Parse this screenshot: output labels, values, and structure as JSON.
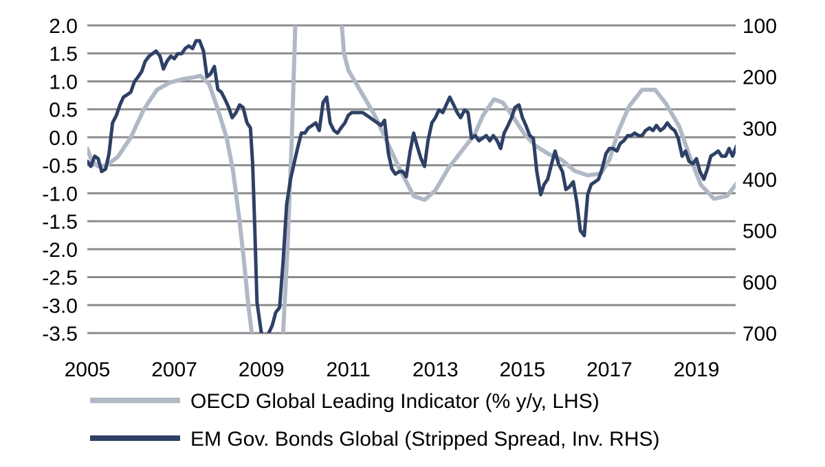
{
  "chart_data": {
    "type": "line",
    "title": "",
    "grid": true,
    "legend_position": "bottom",
    "x_axis": {
      "range": [
        2005.0,
        2019.9
      ],
      "ticks": [
        2005,
        2007,
        2009,
        2011,
        2013,
        2015,
        2017,
        2019
      ],
      "tick_labels": [
        "2005",
        "2007",
        "2009",
        "2011",
        "2013",
        "2015",
        "2017",
        "2019"
      ]
    },
    "y_left": {
      "range": [
        -3.5,
        2.0
      ],
      "ticks": [
        2.0,
        1.5,
        1.0,
        0.5,
        0.0,
        -0.5,
        -1.0,
        -1.5,
        -2.0,
        -2.5,
        -3.0,
        -3.5
      ],
      "tick_labels": [
        "2.0",
        "1.5",
        "1.0",
        "0.5",
        "0.0",
        "-0.5",
        "-1.0",
        "-1.5",
        "-2.0",
        "-2.5",
        "-3.0",
        "-3.5"
      ]
    },
    "y_right": {
      "range": [
        100,
        700
      ],
      "inverted": true,
      "ticks": [
        100,
        200,
        300,
        400,
        500,
        600,
        700
      ],
      "tick_labels": [
        "100",
        "200",
        "300",
        "400",
        "500",
        "600",
        "700"
      ]
    },
    "series": [
      {
        "name": "OECD Global Leading Indicator (% y/y, LHS)",
        "axis": "left",
        "color": "#b1b8c6",
        "points": [
          [
            2005.0,
            -0.2
          ],
          [
            2005.1,
            -0.42
          ],
          [
            2005.25,
            -0.52
          ],
          [
            2005.45,
            -0.5
          ],
          [
            2005.7,
            -0.35
          ],
          [
            2006.0,
            0.0
          ],
          [
            2006.3,
            0.5
          ],
          [
            2006.6,
            0.85
          ],
          [
            2006.9,
            0.98
          ],
          [
            2007.2,
            1.04
          ],
          [
            2007.5,
            1.08
          ],
          [
            2007.6,
            1.1
          ],
          [
            2007.8,
            0.95
          ],
          [
            2008.0,
            0.5
          ],
          [
            2008.2,
            0.0
          ],
          [
            2008.35,
            -0.6
          ],
          [
            2008.5,
            -1.5
          ],
          [
            2008.6,
            -2.2
          ],
          [
            2008.7,
            -3.0
          ],
          [
            2008.78,
            -3.5
          ]
        ]
      },
      {
        "name": "OECD Global Leading Indicator (% y/y, LHS)",
        "axis": "left",
        "color": "#b1b8c6",
        "points": [
          [
            2009.5,
            -3.5
          ],
          [
            2009.6,
            -2.0
          ],
          [
            2009.7,
            0.0
          ],
          [
            2009.78,
            2.0
          ]
        ]
      },
      {
        "name": "OECD Global Leading Indicator (% y/y, LHS)",
        "axis": "left",
        "color": "#b1b8c6",
        "points": [
          [
            2010.85,
            2.0
          ],
          [
            2010.9,
            1.5
          ],
          [
            2011.0,
            1.2
          ],
          [
            2011.3,
            0.8
          ],
          [
            2011.6,
            0.4
          ],
          [
            2011.9,
            -0.1
          ],
          [
            2012.2,
            -0.6
          ],
          [
            2012.5,
            -1.05
          ],
          [
            2012.75,
            -1.12
          ],
          [
            2013.0,
            -0.95
          ],
          [
            2013.3,
            -0.55
          ],
          [
            2013.6,
            -0.25
          ],
          [
            2013.9,
            0.05
          ],
          [
            2014.1,
            0.4
          ],
          [
            2014.35,
            0.68
          ],
          [
            2014.55,
            0.62
          ],
          [
            2014.8,
            0.35
          ],
          [
            2015.05,
            0.05
          ],
          [
            2015.3,
            -0.15
          ],
          [
            2015.6,
            -0.3
          ],
          [
            2015.9,
            -0.4
          ],
          [
            2016.2,
            -0.6
          ],
          [
            2016.5,
            -0.68
          ],
          [
            2016.8,
            -0.65
          ],
          [
            2017.0,
            -0.4
          ],
          [
            2017.2,
            0.1
          ],
          [
            2017.45,
            0.55
          ],
          [
            2017.75,
            0.85
          ],
          [
            2018.05,
            0.85
          ],
          [
            2018.3,
            0.6
          ],
          [
            2018.6,
            0.2
          ],
          [
            2018.85,
            -0.35
          ],
          [
            2019.1,
            -0.85
          ],
          [
            2019.4,
            -1.1
          ],
          [
            2019.7,
            -1.05
          ],
          [
            2020.0,
            -0.75
          ]
        ]
      },
      {
        "name": "EM Gov. Bonds Global (Stripped Spread, Inv. RHS)",
        "axis": "right",
        "color": "#2e4066",
        "points": [
          [
            2005.0,
            365
          ],
          [
            2005.08,
            375
          ],
          [
            2005.17,
            355
          ],
          [
            2005.25,
            360
          ],
          [
            2005.33,
            385
          ],
          [
            2005.42,
            380
          ],
          [
            2005.5,
            350
          ],
          [
            2005.58,
            290
          ],
          [
            2005.67,
            275
          ],
          [
            2005.75,
            255
          ],
          [
            2005.83,
            240
          ],
          [
            2005.92,
            235
          ],
          [
            2006.0,
            230
          ],
          [
            2006.08,
            210
          ],
          [
            2006.17,
            200
          ],
          [
            2006.25,
            190
          ],
          [
            2006.33,
            170
          ],
          [
            2006.42,
            160
          ],
          [
            2006.5,
            155
          ],
          [
            2006.58,
            150
          ],
          [
            2006.67,
            160
          ],
          [
            2006.75,
            185
          ],
          [
            2006.83,
            170
          ],
          [
            2006.92,
            160
          ],
          [
            2007.0,
            165
          ],
          [
            2007.08,
            155
          ],
          [
            2007.17,
            155
          ],
          [
            2007.25,
            145
          ],
          [
            2007.33,
            140
          ],
          [
            2007.42,
            145
          ],
          [
            2007.5,
            130
          ],
          [
            2007.58,
            130
          ],
          [
            2007.67,
            150
          ],
          [
            2007.75,
            200
          ],
          [
            2007.83,
            195
          ],
          [
            2007.92,
            180
          ],
          [
            2008.0,
            225
          ],
          [
            2008.08,
            230
          ],
          [
            2008.17,
            245
          ],
          [
            2008.25,
            260
          ],
          [
            2008.33,
            280
          ],
          [
            2008.42,
            270
          ],
          [
            2008.5,
            255
          ],
          [
            2008.58,
            260
          ],
          [
            2008.67,
            290
          ],
          [
            2008.75,
            300
          ],
          [
            2008.8,
            370
          ],
          [
            2008.85,
            500
          ],
          [
            2008.9,
            640
          ],
          [
            2009.0,
            700
          ],
          [
            2009.08,
            710
          ],
          [
            2009.17,
            700
          ],
          [
            2009.25,
            685
          ],
          [
            2009.33,
            660
          ],
          [
            2009.42,
            650
          ],
          [
            2009.5,
            560
          ],
          [
            2009.58,
            450
          ],
          [
            2009.67,
            400
          ],
          [
            2009.75,
            370
          ],
          [
            2009.83,
            340
          ],
          [
            2009.92,
            310
          ],
          [
            2010.0,
            310
          ],
          [
            2010.08,
            300
          ],
          [
            2010.17,
            295
          ],
          [
            2010.25,
            290
          ],
          [
            2010.33,
            305
          ],
          [
            2010.42,
            250
          ],
          [
            2010.5,
            240
          ],
          [
            2010.58,
            290
          ],
          [
            2010.67,
            305
          ],
          [
            2010.75,
            310
          ],
          [
            2010.83,
            300
          ],
          [
            2010.92,
            290
          ],
          [
            2011.0,
            275
          ],
          [
            2011.08,
            270
          ],
          [
            2011.17,
            270
          ],
          [
            2011.33,
            270
          ],
          [
            2011.5,
            280
          ],
          [
            2011.58,
            285
          ],
          [
            2011.67,
            290
          ],
          [
            2011.75,
            295
          ],
          [
            2011.83,
            285
          ],
          [
            2011.92,
            350
          ],
          [
            2012.0,
            380
          ],
          [
            2012.08,
            390
          ],
          [
            2012.17,
            385
          ],
          [
            2012.25,
            385
          ],
          [
            2012.33,
            395
          ],
          [
            2012.42,
            345
          ],
          [
            2012.5,
            310
          ],
          [
            2012.58,
            335
          ],
          [
            2012.67,
            360
          ],
          [
            2012.75,
            375
          ],
          [
            2012.83,
            325
          ],
          [
            2012.92,
            290
          ],
          [
            2013.0,
            280
          ],
          [
            2013.08,
            265
          ],
          [
            2013.17,
            270
          ],
          [
            2013.25,
            255
          ],
          [
            2013.33,
            240
          ],
          [
            2013.42,
            255
          ],
          [
            2013.5,
            270
          ],
          [
            2013.58,
            280
          ],
          [
            2013.67,
            265
          ],
          [
            2013.75,
            270
          ],
          [
            2013.83,
            320
          ],
          [
            2013.92,
            315
          ],
          [
            2014.0,
            325
          ],
          [
            2014.08,
            320
          ],
          [
            2014.17,
            315
          ],
          [
            2014.25,
            325
          ],
          [
            2014.33,
            315
          ],
          [
            2014.42,
            325
          ],
          [
            2014.5,
            340
          ],
          [
            2014.58,
            310
          ],
          [
            2014.67,
            295
          ],
          [
            2014.75,
            280
          ],
          [
            2014.83,
            260
          ],
          [
            2014.92,
            255
          ],
          [
            2015.0,
            280
          ],
          [
            2015.08,
            295
          ],
          [
            2015.17,
            315
          ],
          [
            2015.25,
            320
          ],
          [
            2015.33,
            385
          ],
          [
            2015.42,
            430
          ],
          [
            2015.5,
            410
          ],
          [
            2015.58,
            400
          ],
          [
            2015.67,
            370
          ],
          [
            2015.75,
            345
          ],
          [
            2015.83,
            370
          ],
          [
            2015.92,
            385
          ],
          [
            2016.0,
            420
          ],
          [
            2016.08,
            415
          ],
          [
            2016.17,
            405
          ],
          [
            2016.25,
            445
          ],
          [
            2016.33,
            500
          ],
          [
            2016.42,
            510
          ],
          [
            2016.5,
            430
          ],
          [
            2016.58,
            410
          ],
          [
            2016.67,
            405
          ],
          [
            2016.75,
            400
          ],
          [
            2016.83,
            380
          ],
          [
            2016.92,
            350
          ],
          [
            2017.0,
            340
          ],
          [
            2017.08,
            340
          ],
          [
            2017.17,
            345
          ],
          [
            2017.25,
            330
          ],
          [
            2017.33,
            325
          ],
          [
            2017.42,
            315
          ],
          [
            2017.5,
            315
          ],
          [
            2017.58,
            310
          ],
          [
            2017.67,
            315
          ],
          [
            2017.75,
            315
          ],
          [
            2017.83,
            305
          ],
          [
            2017.92,
            300
          ],
          [
            2018.0,
            305
          ],
          [
            2018.08,
            295
          ],
          [
            2018.17,
            305
          ],
          [
            2018.25,
            300
          ],
          [
            2018.33,
            290
          ],
          [
            2018.42,
            300
          ],
          [
            2018.5,
            305
          ],
          [
            2018.58,
            320
          ],
          [
            2018.67,
            355
          ],
          [
            2018.75,
            345
          ],
          [
            2018.83,
            365
          ],
          [
            2018.92,
            370
          ],
          [
            2019.0,
            360
          ],
          [
            2019.08,
            385
          ],
          [
            2019.17,
            400
          ],
          [
            2019.25,
            380
          ],
          [
            2019.33,
            355
          ],
          [
            2019.42,
            350
          ],
          [
            2019.5,
            345
          ],
          [
            2019.58,
            355
          ],
          [
            2019.67,
            355
          ],
          [
            2019.75,
            340
          ],
          [
            2019.83,
            355
          ],
          [
            2019.92,
            335
          ],
          [
            2020.0,
            325
          ]
        ]
      }
    ],
    "legend": [
      {
        "label": "OECD Global Leading Indicator (% y/y, LHS)",
        "color": "#b1b8c6"
      },
      {
        "label": "EM Gov. Bonds Global (Stripped Spread, Inv. RHS)",
        "color": "#2e4066"
      }
    ]
  }
}
